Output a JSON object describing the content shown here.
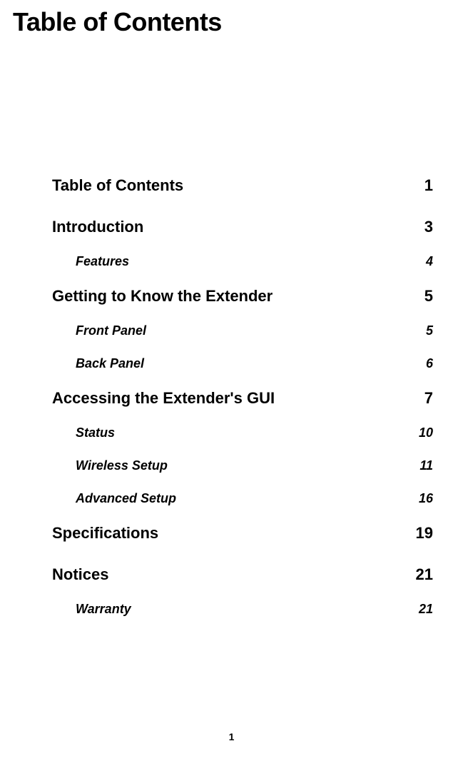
{
  "page_title": "Table of Contents",
  "page_number": "1",
  "toc": {
    "sections": [
      {
        "title": "Table of Contents",
        "page": "1",
        "children": []
      },
      {
        "title": "Introduction",
        "page": "3",
        "children": [
          {
            "title": "Features",
            "page": "4"
          }
        ]
      },
      {
        "title": "Getting to Know the Extender",
        "page": "5",
        "children": [
          {
            "title": "Front Panel",
            "page": "5"
          },
          {
            "title": "Back Panel",
            "page": "6"
          }
        ]
      },
      {
        "title": "Accessing the Extender's GUI",
        "page": "7",
        "children": [
          {
            "title": "Status",
            "page": "10"
          },
          {
            "title": "Wireless Setup",
            "page": "11"
          },
          {
            "title": "Advanced Setup",
            "page": "16"
          }
        ]
      },
      {
        "title": "Specifications",
        "page": "19",
        "children": []
      },
      {
        "title": "Notices",
        "page": "21",
        "children": [
          {
            "title": "Warranty",
            "page": "21"
          }
        ]
      }
    ]
  },
  "styling": {
    "background_color": "#ffffff",
    "text_color": "#000000",
    "title_fontsize": 36,
    "level1_fontsize": 22,
    "level2_fontsize": 18,
    "page_number_fontsize": 14,
    "level2_indent": 33
  }
}
